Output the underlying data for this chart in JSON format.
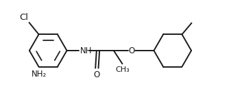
{
  "bg_color": "#ffffff",
  "line_color": "#1a1a1a",
  "text_color": "#1a1a1a",
  "line_width": 1.4,
  "font_size": 8.5,
  "xlim": [
    0,
    10
  ],
  "ylim": [
    0,
    4.7
  ]
}
